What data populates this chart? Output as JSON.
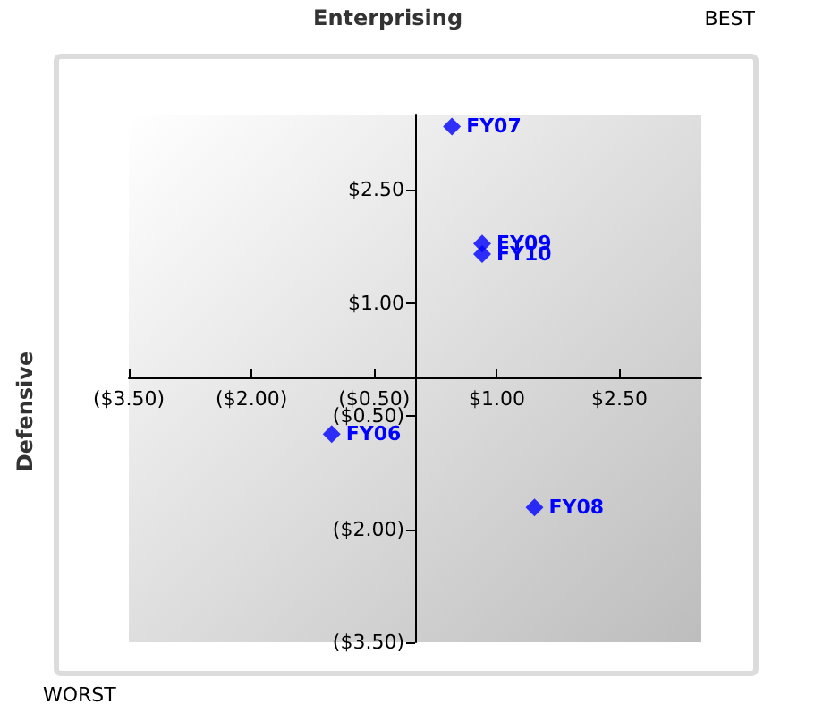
{
  "chart_data": {
    "type": "scatter",
    "xlabel": "Enterprising",
    "ylabel": "Defensive",
    "annotations": [
      "BEST",
      "WORST",
      {
        "text": "FY07",
        "x": 0.45,
        "y": 3.34
      },
      {
        "text": "FY09",
        "x": 0.82,
        "y": 1.79
      },
      {
        "text": "FY10",
        "x": 0.82,
        "y": 1.65
      },
      {
        "text": "FY06",
        "x": -1.02,
        "y": -0.74
      },
      {
        "text": "FY08",
        "x": 1.46,
        "y": -1.71
      }
    ],
    "series": [
      {
        "color": "#0000ff",
        "x": [
          -1.02,
          0.45,
          1.46,
          0.82,
          0.82
        ],
        "values": [
          -0.74,
          3.34,
          -1.71,
          1.79,
          1.65
        ]
      }
    ],
    "marker": "diamond",
    "grid": false,
    "xlim": [
      -3.5,
      3.5
    ],
    "ylim": [
      -3.5,
      3.5
    ],
    "xticks": [
      {
        "value": -3.5,
        "label": "($3.50)"
      },
      {
        "value": -2,
        "label": "($2.00)"
      },
      {
        "value": -0.5,
        "label": "($0.50)"
      },
      {
        "value": 1,
        "label": "$1.00"
      },
      {
        "value": 2.5,
        "label": "$2.50"
      }
    ],
    "yticks": [
      {
        "value": -3.5,
        "label": "($3.50)"
      },
      {
        "value": -2,
        "label": "($2.00)"
      },
      {
        "value": -0.5,
        "label": "($0.50)"
      },
      {
        "value": 1,
        "label": "$1.00"
      },
      {
        "value": 2.5,
        "label": "$2.50"
      }
    ]
  }
}
